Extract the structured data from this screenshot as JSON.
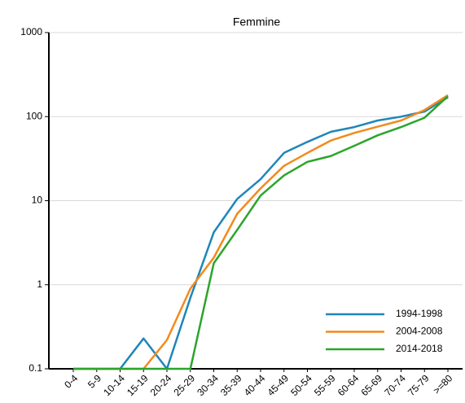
{
  "chart_data": {
    "type": "line",
    "title": "Femmine",
    "categories": [
      "0-4",
      "5-9",
      "10-14",
      "15-19",
      "20-24",
      "25-29",
      "30-34",
      "35-39",
      "40-44",
      "45-49",
      "50-54",
      "55-59",
      "60-64",
      "65-69",
      "70-74",
      "75-79",
      ">=80"
    ],
    "series": [
      {
        "name": "1994-1998",
        "color": "#1f86b8",
        "values": [
          0.1,
          0.1,
          0.1,
          0.23,
          0.1,
          0.7,
          4.2,
          10.5,
          18,
          37,
          50,
          66,
          75,
          90,
          100,
          115,
          170
        ]
      },
      {
        "name": "2004-2008",
        "color": "#f28a1e",
        "values": [
          0.1,
          0.1,
          0.1,
          0.1,
          0.22,
          0.9,
          2.1,
          7,
          14,
          26,
          37,
          52,
          64,
          76,
          90,
          120,
          180
        ]
      },
      {
        "name": "2014-2018",
        "color": "#2aa52a",
        "values": [
          0.1,
          0.1,
          0.1,
          0.1,
          0.1,
          0.1,
          1.8,
          4.5,
          11.5,
          20,
          29,
          34,
          45,
          60,
          75,
          97,
          175
        ]
      }
    ],
    "ylim": [
      0.1,
      1000
    ],
    "yticks": [
      0.1,
      1,
      10,
      100,
      1000
    ],
    "log_scale": true,
    "grid": true,
    "legend": "lower right"
  }
}
